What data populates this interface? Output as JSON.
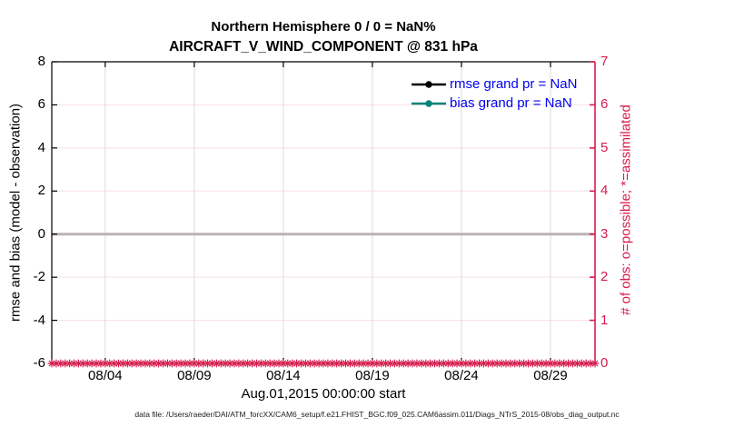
{
  "figure": {
    "title_line1": "Northern Hemisphere 0 / 0 = NaN%",
    "title_line2": "AIRCRAFT_V_WIND_COMPONENT @ 831 hPa",
    "footer": "data file: /Users/raeder/DAI/ATM_forcXX/CAM6_setup/f.e21.FHIST_BGC.f09_025.CAM6assim.011/Diags_NTrS_2015-08/obs_diag_output.nc"
  },
  "colors": {
    "left_axis": "#000000",
    "right_axis": "#d81b4e",
    "legend_text": "#0202f0",
    "bias_series": "#00837b",
    "rmse_series": "#000000",
    "zero_line": "#bcb2b4",
    "h_grid": "#f6dfe6",
    "v_grid": "#dcdcdc"
  },
  "chart_data": {
    "type": "line",
    "title": "Northern Hemisphere 0 / 0 = NaN%",
    "subtitle": "AIRCRAFT_V_WIND_COMPONENT @ 831 hPa",
    "region": "Northern Hemisphere",
    "obs_ratio_text": "0 / 0 = NaN%",
    "xlabel": "Aug.01,2015 00:00:00 start",
    "x_axis": {
      "tick_labels": [
        "08/04",
        "08/09",
        "08/14",
        "08/19",
        "08/24",
        "08/29"
      ],
      "tick_days": [
        4,
        9,
        14,
        19,
        24,
        29
      ],
      "range_days": [
        1,
        31.5
      ],
      "grid": true
    },
    "y_left": {
      "label": "rmse and bias (model - observation)",
      "ticks": [
        -6,
        -4,
        -2,
        0,
        2,
        4,
        6,
        8
      ],
      "range": [
        -6,
        8
      ],
      "color": "#000000"
    },
    "y_right": {
      "label": "# of obs: o=possible; *=assimilated",
      "ticks": [
        0,
        1,
        2,
        3,
        4,
        5,
        6,
        7
      ],
      "range": [
        0,
        7
      ],
      "color": "#d81b4e",
      "grid": true
    },
    "series": [
      {
        "name": "rmse",
        "legend": "rmse grand pr = NaN",
        "grand_mean": "NaN",
        "color": "#000000",
        "values": []
      },
      {
        "name": "bias",
        "legend": "bias grand pr = NaN",
        "grand_mean": "NaN",
        "color": "#00837b",
        "values": []
      }
    ],
    "obs_markers": {
      "marker": "*",
      "meaning": "number of observations assimilated",
      "value_at_all_times": 0,
      "days_start": 1,
      "days_end": 31.5,
      "interval_days": 0.25,
      "color": "#d81b4e"
    },
    "zero_line": {
      "value": 0,
      "color": "#bcb2b4"
    },
    "legend_position": "upper right, no box",
    "grid": "on"
  }
}
